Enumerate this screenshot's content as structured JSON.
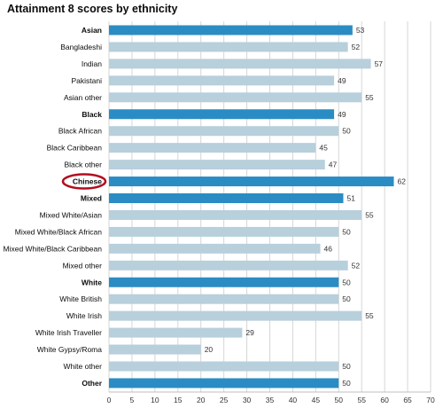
{
  "chart_data": {
    "type": "bar",
    "orientation": "horizontal",
    "title": "Attainment 8 scores by ethnicity",
    "categories": [
      "Asian",
      "Bangladeshi",
      "Indian",
      "Pakistani",
      "Asian other",
      "Black",
      "Black African",
      "Black Caribbean",
      "Black other",
      "Chinese",
      "Mixed",
      "Mixed White/Asian",
      "Mixed White/Black African",
      "Mixed White/Black Caribbean",
      "Mixed other",
      "White",
      "White British",
      "White Irish",
      "White Irish Traveller",
      "White Gypsy/Roma",
      "White other",
      "Other"
    ],
    "values": [
      53,
      52,
      57,
      49,
      55,
      49,
      50,
      45,
      47,
      62,
      51,
      55,
      50,
      46,
      52,
      50,
      50,
      55,
      29,
      20,
      50,
      50
    ],
    "group_headers": [
      "Asian",
      "Black",
      "Chinese",
      "Mixed",
      "White",
      "Other"
    ],
    "highlighted": "Chinese",
    "xlim": [
      0,
      70
    ],
    "xticks": [
      0,
      5,
      10,
      15,
      20,
      25,
      30,
      35,
      40,
      45,
      50,
      55,
      60,
      65,
      70
    ],
    "xlabel": "",
    "ylabel": "",
    "grid": true,
    "colors": {
      "group_bar": "#2b8cc4",
      "sub_bar": "#b8cfdc",
      "highlight_ring": "#b10e1e",
      "grid": "#d6d6d6"
    }
  }
}
